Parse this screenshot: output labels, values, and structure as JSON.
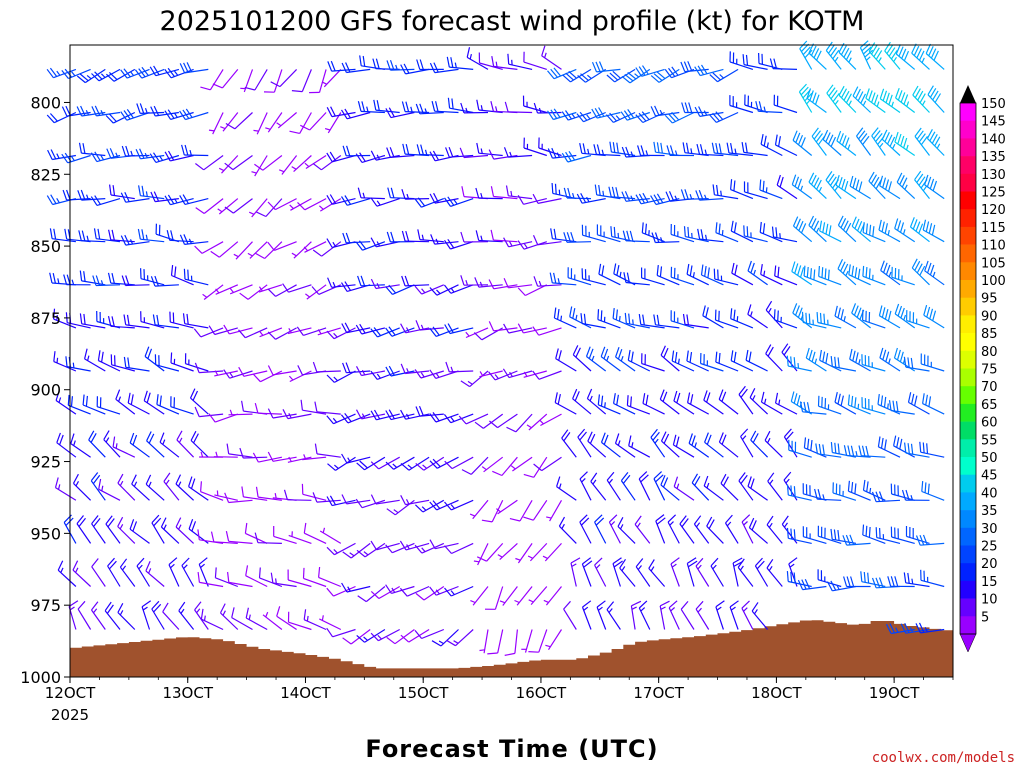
{
  "chart_data": {
    "type": "wind_profile",
    "title": "2025101200 GFS forecast wind profile (kt) for KOTM",
    "xlabel": "Forecast Time (UTC)",
    "ylabel": "",
    "x_ticks": [
      "12OCT",
      "13OCT",
      "14OCT",
      "15OCT",
      "16OCT",
      "17OCT",
      "18OCT",
      "19OCT"
    ],
    "x_tick_days": [
      12,
      13,
      14,
      15,
      16,
      17,
      18,
      19
    ],
    "x_year_label": "2025",
    "x_range_days": [
      12.0,
      19.5
    ],
    "y_ticks": [
      800,
      825,
      850,
      875,
      900,
      925,
      950,
      975,
      1000
    ],
    "y_range_hPa": [
      1000,
      780
    ],
    "time_step_hours": 3,
    "levels_hPa": [
      785,
      800,
      815,
      830,
      845,
      860,
      875,
      890,
      905,
      920,
      935,
      950,
      965,
      980
    ],
    "colorbar": {
      "units": "kt",
      "labels": [
        "150",
        "145",
        "140",
        "135",
        "130",
        "125",
        "120",
        "115",
        "110",
        "105",
        "100",
        "95",
        "90",
        "85",
        "80",
        "75",
        "70",
        "65",
        "60",
        "55",
        "50",
        "45",
        "40",
        "35",
        "30",
        "25",
        "20",
        "15",
        "10",
        "5"
      ],
      "colors": [
        "#ff00ff",
        "#ff00cc",
        "#ff0099",
        "#ff0066",
        "#ff0044",
        "#ff0000",
        "#ff2200",
        "#ff4400",
        "#ff6600",
        "#ff8800",
        "#ffaa00",
        "#ffcc00",
        "#ffee00",
        "#ffff00",
        "#ddff00",
        "#aaff00",
        "#66ff00",
        "#22ee22",
        "#00dd66",
        "#00eeaa",
        "#00ffcc",
        "#00ccee",
        "#00aaff",
        "#0088ff",
        "#0066ff",
        "#0044ff",
        "#0022ff",
        "#2200ff",
        "#6600ff",
        "#9900ff"
      ]
    },
    "terrain": {
      "color": "#a0522d",
      "surface_pressure_hPa": [
        {
          "day": 12.0,
          "p": 990
        },
        {
          "day": 12.5,
          "p": 988
        },
        {
          "day": 13.0,
          "p": 986
        },
        {
          "day": 13.3,
          "p": 987
        },
        {
          "day": 13.6,
          "p": 990
        },
        {
          "day": 14.0,
          "p": 992
        },
        {
          "day": 14.3,
          "p": 994
        },
        {
          "day": 14.6,
          "p": 997
        },
        {
          "day": 15.0,
          "p": 997
        },
        {
          "day": 15.3,
          "p": 997
        },
        {
          "day": 15.6,
          "p": 996
        },
        {
          "day": 16.0,
          "p": 994
        },
        {
          "day": 16.3,
          "p": 994
        },
        {
          "day": 16.6,
          "p": 991
        },
        {
          "day": 16.8,
          "p": 988
        },
        {
          "day": 17.0,
          "p": 987
        },
        {
          "day": 17.3,
          "p": 986
        },
        {
          "day": 17.7,
          "p": 984
        },
        {
          "day": 18.0,
          "p": 982
        },
        {
          "day": 18.3,
          "p": 980
        },
        {
          "day": 18.5,
          "p": 981
        },
        {
          "day": 18.7,
          "p": 982
        },
        {
          "day": 18.9,
          "p": 980
        },
        {
          "day": 19.1,
          "p": 982
        },
        {
          "day": 19.5,
          "p": 984
        }
      ]
    },
    "wind_regimes": [
      {
        "day_start": 12.0,
        "day_end": 13.2,
        "dir_deg_top": 250,
        "dir_deg_bottom": 330,
        "speed_kt_top": 25,
        "speed_kt_bottom": 15
      },
      {
        "day_start": 13.2,
        "day_end": 14.4,
        "dir_deg_top": 210,
        "dir_deg_bottom": 300,
        "speed_kt_top": 8,
        "speed_kt_bottom": 10
      },
      {
        "day_start": 14.4,
        "day_end": 15.5,
        "dir_deg_top": 270,
        "dir_deg_bottom": 240,
        "speed_kt_top": 22,
        "speed_kt_bottom": 12
      },
      {
        "day_start": 15.5,
        "day_end": 16.2,
        "dir_deg_top": 290,
        "dir_deg_bottom": 200,
        "speed_kt_top": 15,
        "speed_kt_bottom": 5
      },
      {
        "day_start": 16.2,
        "day_end": 17.8,
        "dir_deg_top": 250,
        "dir_deg_bottom": 340,
        "speed_kt_top": 30,
        "speed_kt_bottom": 15
      },
      {
        "day_start": 17.8,
        "day_end": 18.3,
        "dir_deg_top": 280,
        "dir_deg_bottom": 330,
        "speed_kt_top": 25,
        "speed_kt_bottom": 15
      },
      {
        "day_start": 18.3,
        "day_end": 19.5,
        "dir_deg_top": 320,
        "dir_deg_bottom": 270,
        "speed_kt_top": 45,
        "speed_kt_bottom": 25
      }
    ]
  },
  "credit": "coolwx.com/models"
}
